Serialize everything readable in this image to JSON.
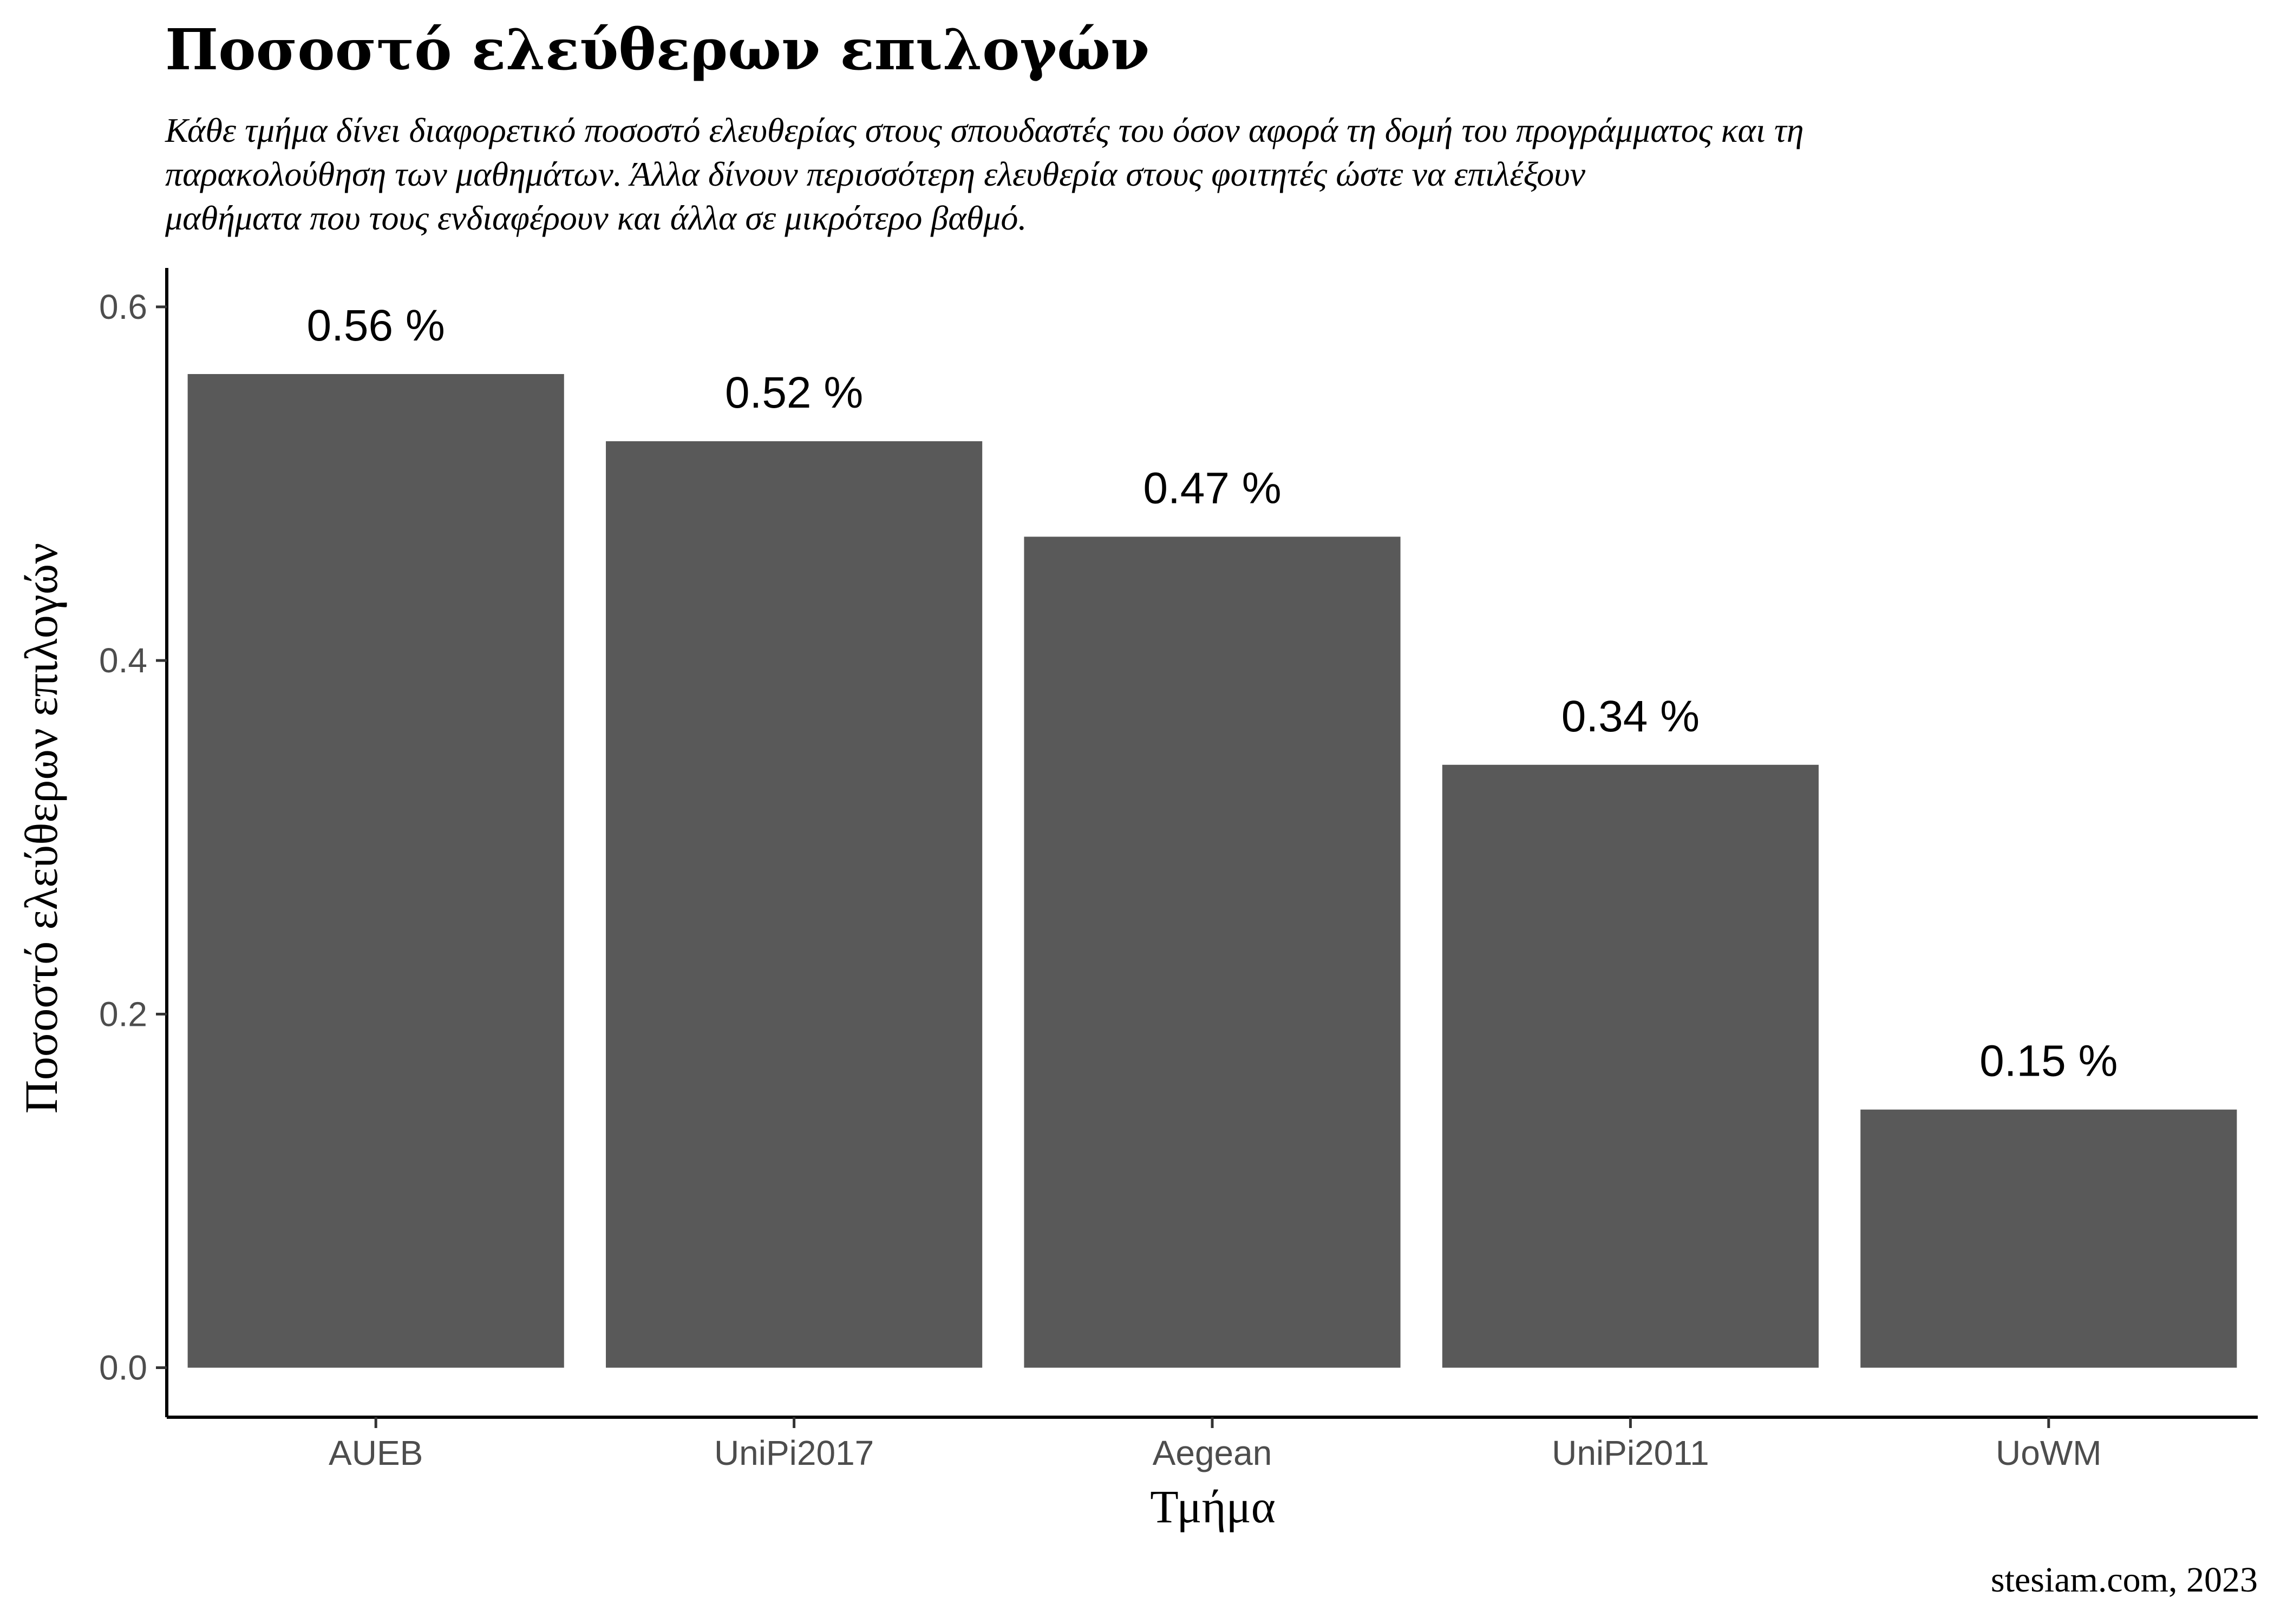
{
  "chart_data": {
    "type": "bar",
    "title": "Ποσοστό ελεύθερων επιλογών",
    "subtitle": [
      "Κάθε τμήμα δίνει διαφορετικό ποσοστό ελευθερίας στους σπουδαστές του όσον αφορά τη δομή του προγράμματος και τη",
      "παρακολούθηση των μαθημάτων. Άλλα δίνουν περισσότερη ελευθερία στους φοιτητές ώστε να επιλέξουν",
      "μαθήματα που τους ενδιαφέρουν και άλλα σε μικρότερο βαθμό."
    ],
    "xlabel": "Τμήμα",
    "ylabel": "Ποσοστό ελεύθερων επιλογών",
    "categories": [
      "AUEB",
      "UniPi2017",
      "Aegean",
      "UniPi2011",
      "UoWM"
    ],
    "values": [
      0.562,
      0.524,
      0.47,
      0.341,
      0.146
    ],
    "data_labels": [
      "0.56 %",
      "0.52 %",
      "0.47 %",
      "0.34 %",
      "0.15 %"
    ],
    "ylim": [
      -0.028,
      0.622
    ],
    "yticks": [
      0.0,
      0.2,
      0.4,
      0.6
    ],
    "ytick_labels": [
      "0.0",
      "0.2",
      "0.4",
      "0.6"
    ],
    "bar_color": "#595959",
    "grid": false,
    "caption": "stesiam.com, 2023"
  }
}
